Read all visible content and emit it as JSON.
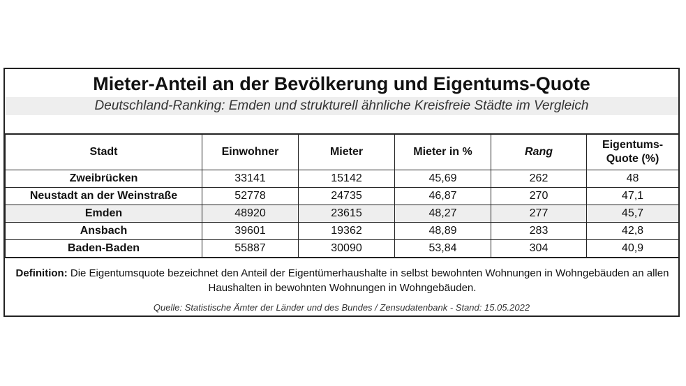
{
  "title": "Mieter-Anteil an der Bevölkerung und Eigentums-Quote",
  "subtitle": "Deutschland-Ranking: Emden und strukturell ähnliche Kreisfreie Städte im Vergleich",
  "columns": {
    "stadt": "Stadt",
    "einwohner": "Einwohner",
    "mieter": "Mieter",
    "mieter_pct": "Mieter in %",
    "rang": "Rang",
    "quote_line1": "Eigentums-",
    "quote_line2": "Quote (%)"
  },
  "rows": [
    {
      "stadt": "Zweibrücken",
      "einwohner": "33141",
      "mieter": "15142",
      "mieter_pct": "45,69",
      "rang": "262",
      "quote": "48"
    },
    {
      "stadt": "Neustadt an der Weinstraße",
      "einwohner": "52778",
      "mieter": "24735",
      "mieter_pct": "46,87",
      "rang": "270",
      "quote": "47,1"
    },
    {
      "stadt": "Emden",
      "einwohner": "48920",
      "mieter": "23615",
      "mieter_pct": "48,27",
      "rang": "277",
      "quote": "45,7"
    },
    {
      "stadt": "Ansbach",
      "einwohner": "39601",
      "mieter": "19362",
      "mieter_pct": "48,89",
      "rang": "283",
      "quote": "42,8"
    },
    {
      "stadt": "Baden-Baden",
      "einwohner": "55887",
      "mieter": "30090",
      "mieter_pct": "53,84",
      "rang": "304",
      "quote": "40,9"
    }
  ],
  "definition": {
    "label": "Definition:",
    "text": "Die Eigentumsquote bezeichnet den Anteil der Eigentümerhaushalte in selbst bewohnten Wohnungen in Wohngebäuden an allen Haushalten in bewohnten Wohnungen in Wohngebäuden."
  },
  "source": "Quelle: Statistische Ämter der Länder und des Bundes / Zensudatenbank - Stand: 15.05.2022",
  "colors": {
    "highlight_row": "#eeeeee",
    "subtitle_bg": "#eeeeee",
    "border": "#222222"
  }
}
